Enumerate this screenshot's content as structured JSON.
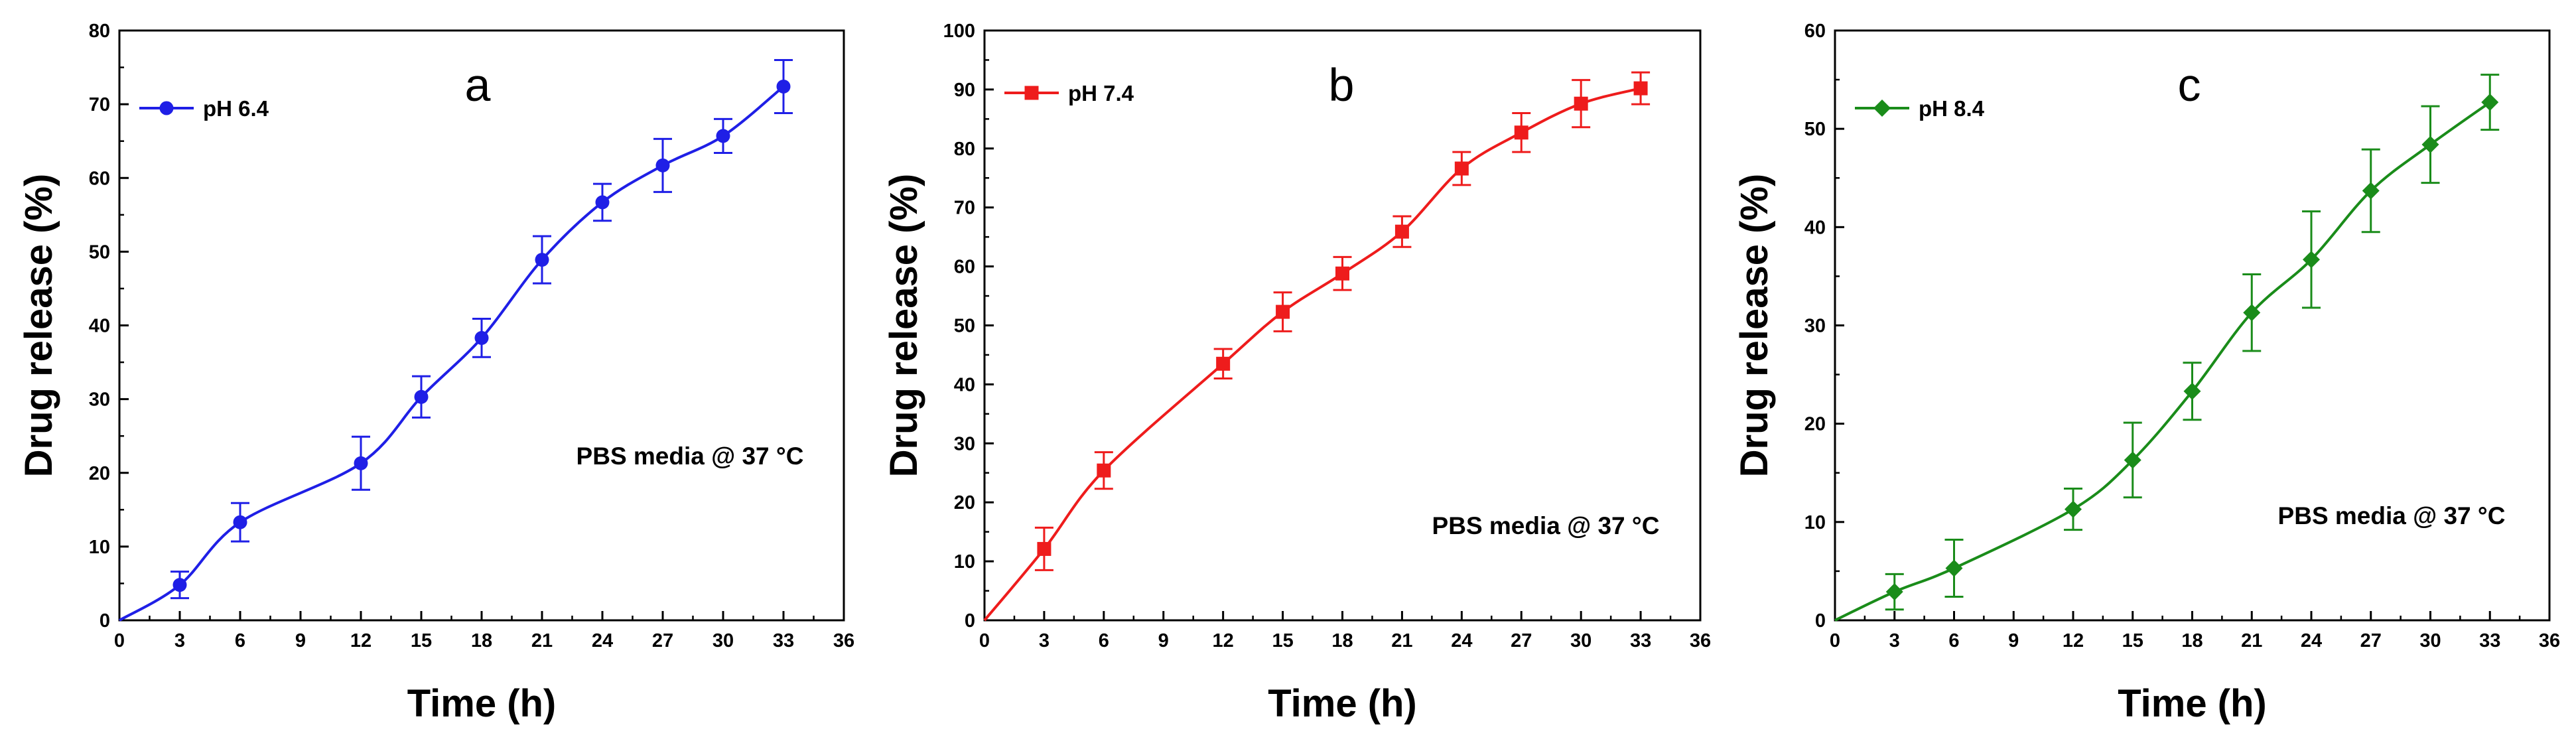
{
  "chart_data": [
    {
      "type": "line",
      "panel_label": "a",
      "annotation": "PBS media @ 37 °C",
      "xlabel": "Time (h)",
      "ylabel": "Drug release (%)",
      "xlim": [
        0,
        36
      ],
      "ylim": [
        0,
        80
      ],
      "xticks": [
        0,
        3,
        6,
        9,
        12,
        15,
        18,
        21,
        24,
        27,
        30,
        33,
        36
      ],
      "yticks": [
        0,
        10,
        20,
        30,
        40,
        50,
        60,
        70,
        80
      ],
      "legend_position": "top-left",
      "series": [
        {
          "name": "pH 6.4",
          "color": "#1f1fe6",
          "marker": "circle",
          "x": [
            0,
            3,
            6,
            12,
            15,
            18,
            21,
            24,
            27,
            30,
            33
          ],
          "values": [
            0,
            4.8,
            13.3,
            21.3,
            30.3,
            38.3,
            48.9,
            56.7,
            61.7,
            65.7,
            72.4
          ],
          "errors": [
            0,
            1.8,
            2.6,
            3.6,
            2.8,
            2.6,
            3.2,
            2.5,
            3.6,
            2.3,
            3.6
          ]
        }
      ]
    },
    {
      "type": "line",
      "panel_label": "b",
      "annotation": "PBS media @ 37 °C",
      "xlabel": "Time (h)",
      "ylabel": "Drug release (%)",
      "xlim": [
        0,
        36
      ],
      "ylim": [
        0,
        100
      ],
      "xticks": [
        0,
        3,
        6,
        9,
        12,
        15,
        18,
        21,
        24,
        27,
        30,
        33,
        36
      ],
      "yticks": [
        0,
        10,
        20,
        30,
        40,
        50,
        60,
        70,
        80,
        90,
        100
      ],
      "legend_position": "top-left",
      "series": [
        {
          "name": "pH 7.4",
          "color": "#ee1c1c",
          "marker": "square",
          "x": [
            0,
            3,
            6,
            12,
            15,
            18,
            21,
            24,
            27,
            30,
            33
          ],
          "values": [
            0,
            12.1,
            25.4,
            43.5,
            52.3,
            58.8,
            65.9,
            76.6,
            82.7,
            87.6,
            90.2
          ],
          "errors": [
            0,
            3.6,
            3.1,
            2.5,
            3.3,
            2.8,
            2.6,
            2.8,
            3.3,
            4.0,
            2.7
          ]
        }
      ]
    },
    {
      "type": "line",
      "panel_label": "c",
      "annotation": "PBS media @ 37 °C",
      "xlabel": "Time (h)",
      "ylabel": "Drug release (%)",
      "xlim": [
        0,
        36
      ],
      "ylim": [
        0,
        60
      ],
      "xticks": [
        0,
        3,
        6,
        9,
        12,
        15,
        18,
        21,
        24,
        27,
        30,
        33,
        36
      ],
      "yticks": [
        0,
        10,
        20,
        30,
        40,
        50,
        60
      ],
      "legend_position": "top-left",
      "series": [
        {
          "name": "pH 8.4",
          "color": "#1a8c1a",
          "marker": "diamond",
          "x": [
            0,
            3,
            6,
            12,
            15,
            18,
            21,
            24,
            27,
            30,
            33
          ],
          "values": [
            0,
            2.9,
            5.3,
            11.3,
            16.3,
            23.3,
            31.3,
            36.7,
            43.7,
            48.4,
            52.7
          ],
          "errors": [
            0,
            1.8,
            2.9,
            2.1,
            3.8,
            2.9,
            3.9,
            4.9,
            4.2,
            3.9,
            2.8
          ]
        }
      ]
    }
  ]
}
